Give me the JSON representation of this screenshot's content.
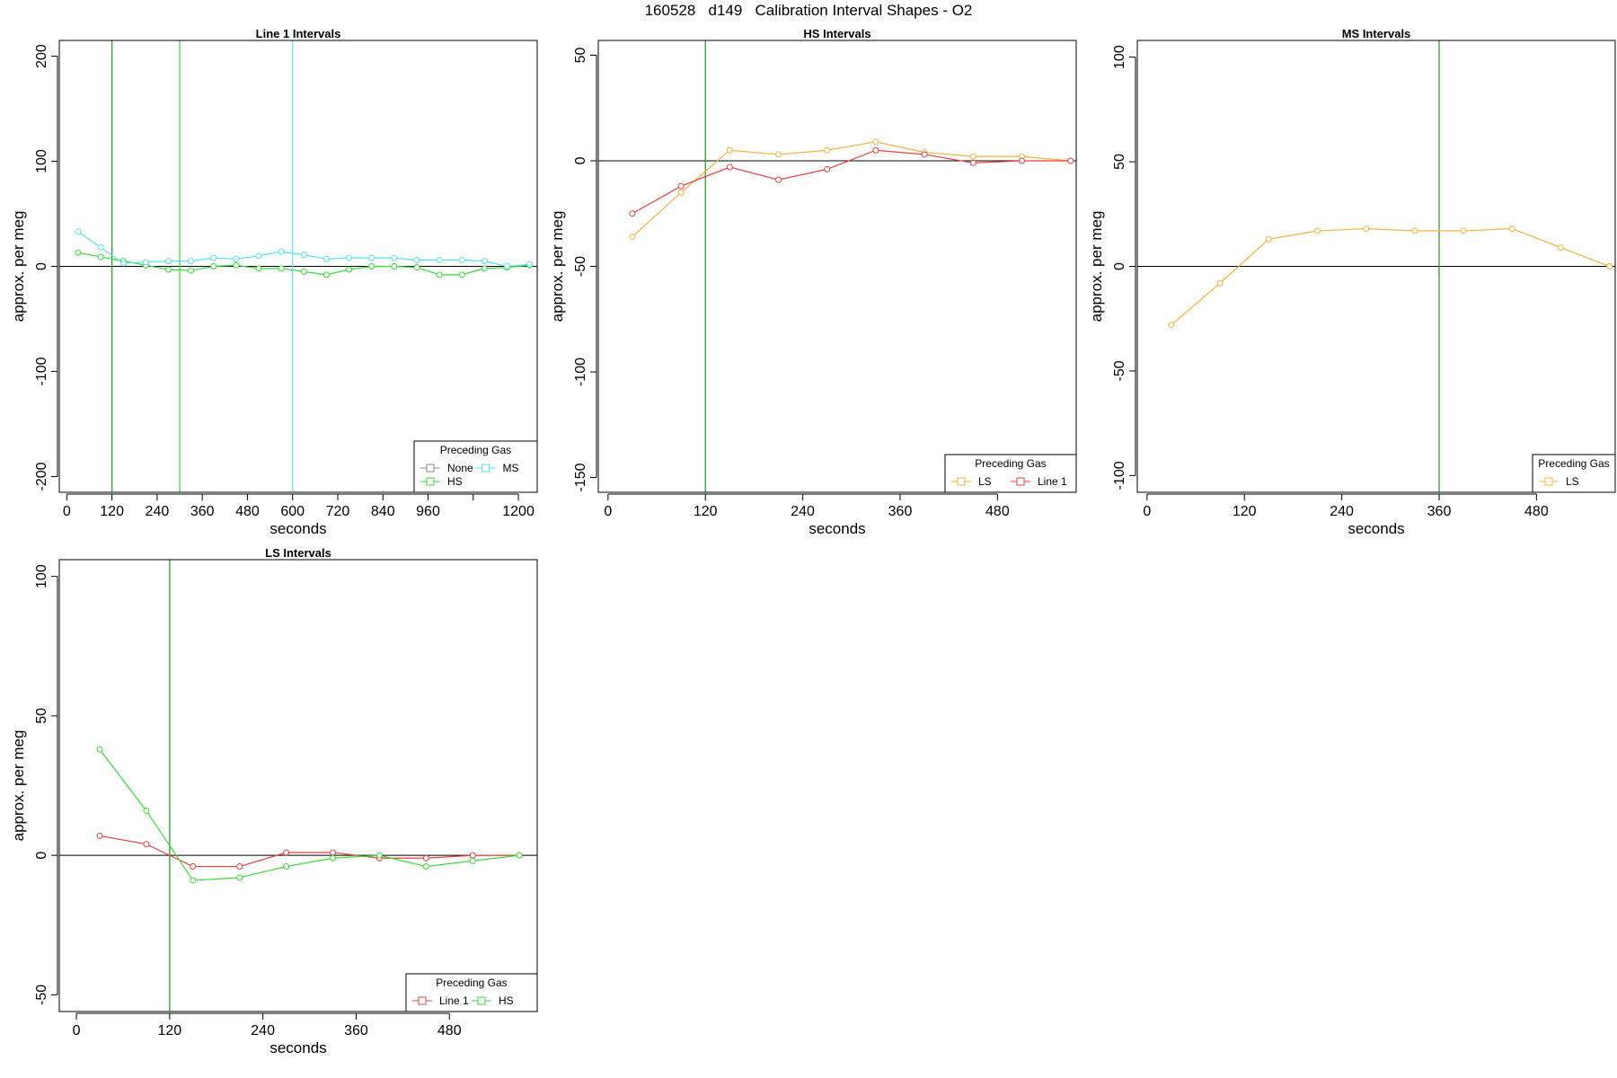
{
  "title": "160528   d149   Calibration Interval Shapes - O2",
  "chart_data": [
    {
      "type": "line",
      "title": "Line 1 Intervals",
      "xlabel": "seconds",
      "ylabel": "approx. per meg",
      "xlim": [
        -20,
        1250
      ],
      "ylim": [
        -215,
        215
      ],
      "xticks": [
        0,
        120,
        240,
        360,
        480,
        600,
        720,
        840,
        960,
        1080,
        1200
      ],
      "xtick_labels": [
        "0",
        "120",
        "240",
        "360",
        "480",
        "600",
        "720",
        "840",
        "960",
        "",
        "1200"
      ],
      "yticks": [
        -200,
        -100,
        0,
        100,
        200
      ],
      "vlines": [
        {
          "x": 120,
          "color": "#2e9e2e"
        },
        {
          "x": 300,
          "color": "#44dd44"
        },
        {
          "x": 600,
          "color": "#66e8ee"
        }
      ],
      "series": [
        {
          "name": "HS",
          "color": "#33dd33",
          "x": [
            30,
            90,
            150,
            210,
            270,
            330,
            390,
            450,
            510,
            570,
            630,
            690,
            750,
            810,
            870,
            930,
            990,
            1050,
            1110,
            1170,
            1230
          ],
          "y": [
            13,
            9,
            5,
            1,
            -3,
            -4,
            0,
            1,
            -2,
            -2,
            -5,
            -8,
            -3,
            0,
            0,
            -1,
            -8,
            -8,
            -2,
            -1,
            1
          ]
        },
        {
          "name": "MS",
          "color": "#55e3ea",
          "x": [
            30,
            90,
            150,
            210,
            270,
            330,
            390,
            450,
            510,
            570,
            630,
            690,
            750,
            810,
            870,
            930,
            990,
            1050,
            1110,
            1170,
            1230
          ],
          "y": [
            33,
            18,
            3,
            4,
            5,
            5,
            8,
            7,
            10,
            14,
            11,
            7,
            8,
            8,
            8,
            6,
            6,
            6,
            5,
            0,
            2
          ]
        }
      ],
      "legend": {
        "title": "Preceding Gas",
        "position": "bottom-right",
        "entries": [
          {
            "label": "None",
            "color": "#888888"
          },
          {
            "label": "MS",
            "color": "#55e3ea"
          },
          {
            "label": "HS",
            "color": "#33dd33"
          }
        ]
      }
    },
    {
      "type": "line",
      "title": "HS Intervals",
      "xlabel": "seconds",
      "ylabel": "approx. per meg",
      "xlim": [
        -12,
        577
      ],
      "ylim": [
        -157,
        57
      ],
      "xticks": [
        0,
        120,
        240,
        360,
        480
      ],
      "xtick_labels": [
        "0",
        "120",
        "240",
        "360",
        "480"
      ],
      "yticks": [
        -150,
        -100,
        -50,
        0,
        50
      ],
      "vlines": [
        {
          "x": 120,
          "color": "#2e9e2e"
        }
      ],
      "series": [
        {
          "name": "LS",
          "color": "#f5b13d",
          "x": [
            30,
            90,
            150,
            210,
            270,
            330,
            390,
            450,
            510,
            570
          ],
          "y": [
            -36,
            -15,
            5,
            3,
            5,
            9,
            4,
            2,
            2,
            0
          ]
        },
        {
          "name": "Line 1",
          "color": "#e84040",
          "x": [
            30,
            90,
            150,
            210,
            270,
            330,
            390,
            450,
            510,
            570
          ],
          "y": [
            -25,
            -12,
            -3,
            -9,
            -4,
            5,
            3,
            -1,
            0,
            0
          ]
        }
      ],
      "legend": {
        "title": "Preceding Gas",
        "position": "bottom-right",
        "entries": [
          {
            "label": "LS",
            "color": "#f5b13d"
          },
          {
            "label": "Line 1",
            "color": "#e84040"
          }
        ]
      }
    },
    {
      "type": "line",
      "title": "MS Intervals",
      "xlabel": "seconds",
      "ylabel": "approx. per meg",
      "xlim": [
        -12,
        577
      ],
      "ylim": [
        -108,
        108
      ],
      "xticks": [
        0,
        120,
        240,
        360,
        480
      ],
      "xtick_labels": [
        "0",
        "120",
        "240",
        "360",
        "480"
      ],
      "yticks": [
        -100,
        -50,
        0,
        50,
        100
      ],
      "vlines": [
        {
          "x": 360,
          "color": "#2e9e2e"
        }
      ],
      "series": [
        {
          "name": "LS",
          "color": "#f5b13d",
          "x": [
            30,
            90,
            150,
            210,
            270,
            330,
            390,
            450,
            510,
            570
          ],
          "y": [
            -28,
            -8,
            13,
            17,
            18,
            17,
            17,
            18,
            9,
            0
          ]
        }
      ],
      "legend": {
        "title": "Preceding Gas",
        "position": "bottom-right",
        "entries": [
          {
            "label": "LS",
            "color": "#f5b13d"
          }
        ]
      }
    },
    {
      "type": "line",
      "title": "LS Intervals",
      "xlabel": "seconds",
      "ylabel": "approx. per meg",
      "xlim": [
        -22,
        593
      ],
      "ylim": [
        -56,
        106
      ],
      "xticks": [
        0,
        120,
        240,
        360,
        480
      ],
      "xtick_labels": [
        "0",
        "120",
        "240",
        "360",
        "480"
      ],
      "yticks": [
        -50,
        0,
        50,
        100
      ],
      "vlines": [
        {
          "x": 120,
          "color": "#2e9e2e"
        }
      ],
      "series": [
        {
          "name": "Line 1",
          "color": "#e84040",
          "x": [
            30,
            90,
            150,
            210,
            270,
            330,
            390,
            450,
            510,
            570
          ],
          "y": [
            7,
            4,
            -4,
            -4,
            1,
            1,
            -1,
            -1,
            0,
            0
          ]
        },
        {
          "name": "HS",
          "color": "#33dd33",
          "x": [
            30,
            90,
            150,
            210,
            270,
            330,
            390,
            450,
            510,
            570
          ],
          "y": [
            38,
            16,
            -9,
            -8,
            -4,
            -1,
            0,
            -4,
            -2,
            0
          ]
        }
      ],
      "legend": {
        "title": "Preceding Gas",
        "position": "bottom-right",
        "entries": [
          {
            "label": "Line 1",
            "color": "#e84040"
          },
          {
            "label": "HS",
            "color": "#33dd33"
          }
        ]
      }
    }
  ]
}
